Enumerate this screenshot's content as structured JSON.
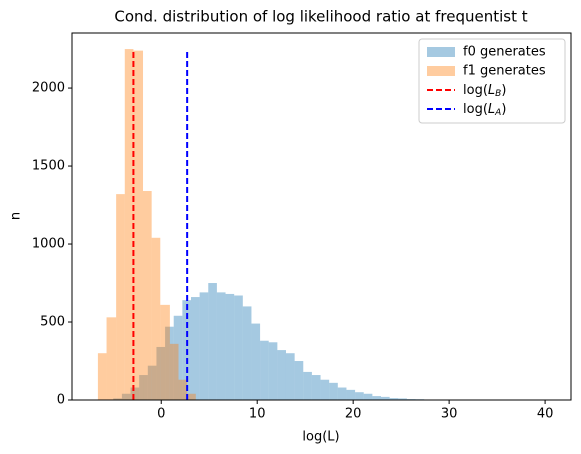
{
  "chart_data": {
    "type": "histogram",
    "title": "Cond. distribution of log likelihood ratio at frequentist  t",
    "x_label": "log(L)",
    "y_label": "n",
    "xlim": [
      -9.3,
      42.7
    ],
    "ylim": [
      0,
      2353
    ],
    "xticks": [
      0,
      10,
      20,
      30,
      40
    ],
    "yticks": [
      0,
      500,
      1000,
      1500,
      2000
    ],
    "legend": "upper right",
    "series": [
      {
        "name": "f0 generates",
        "color": "#1f77b4",
        "alpha": 0.4,
        "bins": [
          -5,
          -4.1,
          -3.2,
          -2.3,
          -1.4,
          -0.5,
          0.4,
          1.3,
          2.2,
          3.1,
          4,
          4.9,
          5.8,
          6.7,
          7.6,
          8.5,
          9.4,
          10.3,
          11.2,
          12.1,
          13,
          13.9,
          14.8,
          15.7,
          16.6,
          17.5,
          18.4,
          19.3,
          20.2,
          21.1,
          22,
          22.9,
          23.8,
          24.7,
          25.6,
          26.5,
          27.4,
          28.3,
          29.2,
          30.1,
          31,
          31.9,
          32.8,
          33.7,
          34.6,
          35.5,
          36.4,
          37.3,
          38.2,
          39.1,
          40
        ],
        "values": [
          10,
          40,
          80,
          160,
          220,
          340,
          470,
          540,
          640,
          660,
          690,
          750,
          690,
          680,
          670,
          600,
          490,
          380,
          370,
          320,
          300,
          250,
          180,
          160,
          130,
          110,
          80,
          65,
          50,
          40,
          25,
          20,
          12,
          10,
          6,
          5,
          3,
          2,
          2,
          1,
          1,
          1,
          0,
          1,
          0,
          0,
          0,
          1,
          0,
          1
        ]
      },
      {
        "name": "f1 generates",
        "color": "#ff7f0e",
        "alpha": 0.4,
        "bins": [
          -6.6,
          -5.7,
          -4.7,
          -3.8,
          -2.9,
          -1.9,
          -1.0,
          -0.1,
          0.9,
          1.8,
          2.7,
          3.6
        ],
        "values": [
          300,
          530,
          1320,
          2250,
          2240,
          1340,
          1040,
          610,
          360,
          130,
          40
        ]
      },
      {
        "type": "vline",
        "name": "log(L_B)",
        "color": "#ff0000",
        "x": -2.9,
        "ymax": 2250
      },
      {
        "type": "vline",
        "name": "log(L_A)",
        "color": "#0000ff",
        "x": 2.7,
        "ymax": 2250
      }
    ]
  }
}
